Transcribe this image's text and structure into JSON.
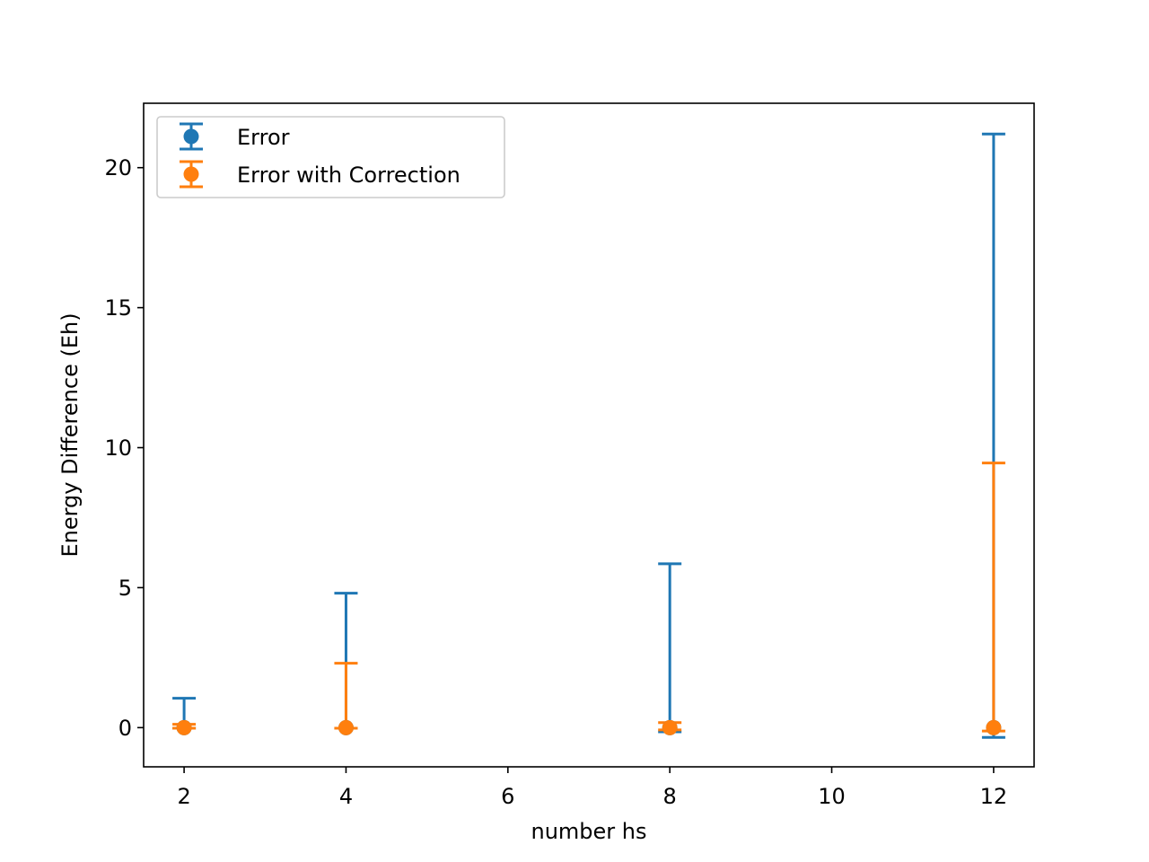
{
  "chart_data": {
    "type": "scatter",
    "title": "",
    "xlabel": "number hs",
    "ylabel": "Energy Difference (Eh)",
    "xlim": [
      1.5,
      12.5
    ],
    "ylim": [
      -1.4,
      22.3
    ],
    "grid": false,
    "legend_position": "top-left",
    "xticks": [
      2,
      4,
      6,
      8,
      10,
      12
    ],
    "yticks": [
      0,
      5,
      10,
      15,
      20
    ],
    "series": [
      {
        "name": "Error",
        "color": "#1f77b4",
        "x": [
          2,
          4,
          8,
          12
        ],
        "y": [
          0,
          0,
          0,
          0
        ],
        "yerr_low": [
          0.02,
          0.02,
          0.15,
          0.35
        ],
        "yerr_high": [
          1.05,
          4.8,
          5.85,
          21.2
        ]
      },
      {
        "name": "Error with Correction",
        "color": "#ff7f0e",
        "x": [
          2,
          4,
          8,
          12
        ],
        "y": [
          0,
          0,
          0,
          0
        ],
        "yerr_low": [
          0.02,
          0.02,
          0.08,
          0.12
        ],
        "yerr_high": [
          0.12,
          2.3,
          0.18,
          9.45
        ]
      }
    ]
  }
}
